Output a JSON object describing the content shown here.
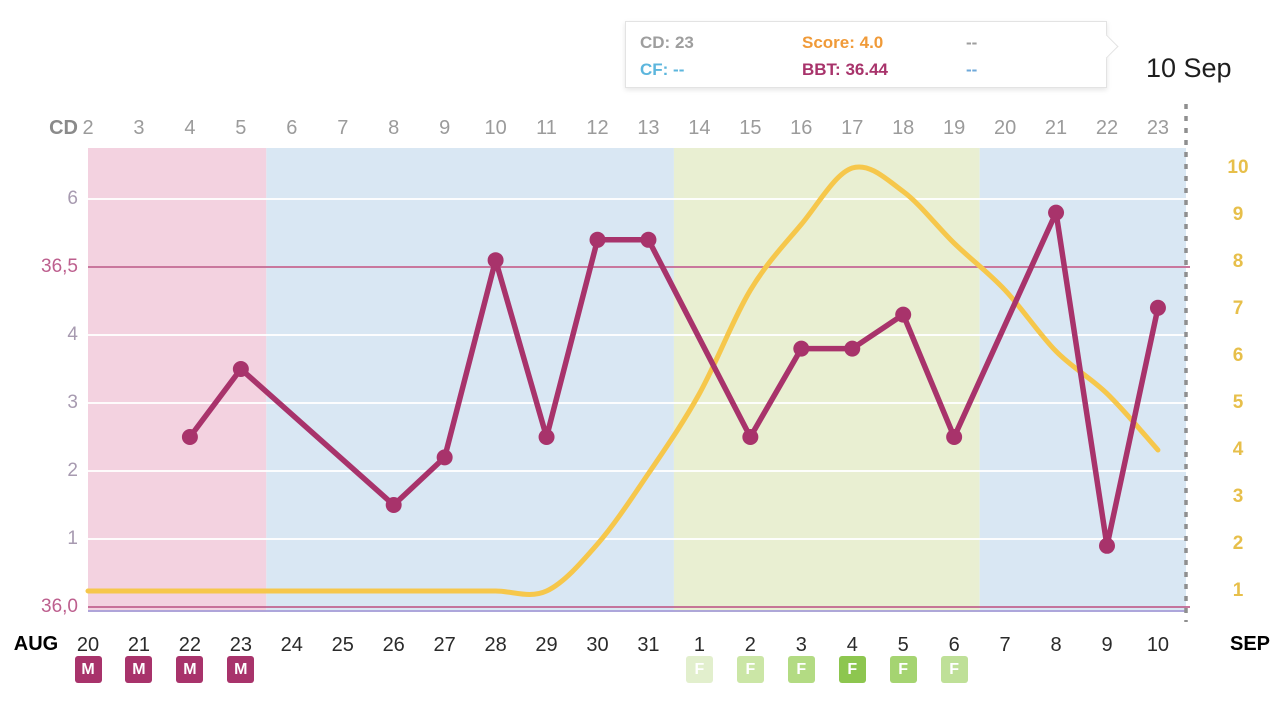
{
  "tooltip": {
    "cd": "CD: 23",
    "score": "Score: 4.0",
    "extra1": "--",
    "cf": "CF: --",
    "bbt": "BBT: 36.44",
    "extra2": "--"
  },
  "current_date_label": "10 Sep",
  "axes": {
    "cd_title": "CD",
    "cd_labels": [
      "2",
      "3",
      "4",
      "5",
      "6",
      "7",
      "8",
      "9",
      "10",
      "11",
      "12",
      "13",
      "14",
      "15",
      "16",
      "17",
      "18",
      "19",
      "20",
      "21",
      "22",
      "23"
    ],
    "left_labels": [
      {
        "text": "6",
        "value": 6,
        "type": "score"
      },
      {
        "text": "36,5",
        "value": 5,
        "type": "temp"
      },
      {
        "text": "4",
        "value": 4,
        "type": "score"
      },
      {
        "text": "3",
        "value": 3,
        "type": "score"
      },
      {
        "text": "2",
        "value": 2,
        "type": "score"
      },
      {
        "text": "1",
        "value": 1,
        "type": "score"
      },
      {
        "text": "36,0",
        "value": 0,
        "type": "temp"
      }
    ],
    "right_labels": [
      "10",
      "9",
      "8",
      "7",
      "6",
      "5",
      "4",
      "3",
      "2",
      "1"
    ],
    "month_start": "AUG",
    "month_end": "SEP",
    "day_labels": [
      "20",
      "21",
      "22",
      "23",
      "24",
      "25",
      "26",
      "27",
      "28",
      "29",
      "30",
      "31",
      "1",
      "2",
      "3",
      "4",
      "5",
      "6",
      "7",
      "8",
      "9",
      "10"
    ]
  },
  "markers": {
    "menstruation": {
      "label": "M",
      "color": "#a8336b",
      "day_indices": [
        0,
        1,
        2,
        3
      ]
    },
    "fertile": {
      "label": "F",
      "day_indices": [
        12,
        13,
        14,
        15,
        16,
        17
      ],
      "colors": [
        "#e2efcd",
        "#cbe6a6",
        "#b3db83",
        "#8dc64f",
        "#a5d471",
        "#bfe098"
      ]
    }
  },
  "chart_data": {
    "type": "line",
    "title": "Cycle chart: BBT and fertility score by cycle day",
    "x": {
      "cycle_days": [
        2,
        3,
        4,
        5,
        6,
        7,
        8,
        9,
        10,
        11,
        12,
        13,
        14,
        15,
        16,
        17,
        18,
        19,
        20,
        21,
        22,
        23
      ],
      "dates": [
        "Aug 20",
        "Aug 21",
        "Aug 22",
        "Aug 23",
        "Aug 24",
        "Aug 25",
        "Aug 26",
        "Aug 27",
        "Aug 28",
        "Aug 29",
        "Aug 30",
        "Aug 31",
        "Sep 1",
        "Sep 2",
        "Sep 3",
        "Sep 4",
        "Sep 5",
        "Sep 6",
        "Sep 7",
        "Sep 8",
        "Sep 9",
        "Sep 10"
      ]
    },
    "series": [
      {
        "name": "BBT",
        "axis": "left",
        "unit": "C",
        "color": "#a8336b",
        "values": [
          null,
          null,
          36.25,
          36.35,
          null,
          null,
          36.15,
          36.22,
          36.51,
          36.25,
          36.54,
          36.54,
          null,
          36.25,
          36.38,
          36.38,
          36.43,
          36.25,
          null,
          36.58,
          36.09,
          36.44
        ]
      },
      {
        "name": "Score",
        "axis": "right",
        "color": "#f6c74b",
        "values": [
          1,
          1,
          1,
          1,
          1,
          1,
          1,
          1,
          1,
          1,
          2,
          3.5,
          5.2,
          7.4,
          8.8,
          10,
          9.5,
          8.4,
          7.4,
          6.1,
          5.2,
          4.0
        ]
      }
    ],
    "left_axis": {
      "temp_min": 36.0,
      "temp_max": 36.7,
      "reference_temps": [
        36.5,
        36.0
      ],
      "reference_line_color": "#bf5f8c"
    },
    "right_axis": {
      "min": 1,
      "max": 10
    },
    "baseline_color": "#a79fd8",
    "grid": true,
    "current_day": {
      "cycle_day": 23,
      "date": "10 Sep"
    },
    "phases": [
      {
        "name": "menstruation",
        "cd_start": 2,
        "cd_end": 5,
        "color": "#f3d2e0"
      },
      {
        "name": "preovulatory",
        "cd_start": 6,
        "cd_end": 13,
        "color": "#d9e7f3"
      },
      {
        "name": "fertile",
        "cd_start": 14,
        "cd_end": 19,
        "color": "#e9efd2"
      },
      {
        "name": "postovulatory",
        "cd_start": 20,
        "cd_end": 23,
        "color": "#d9e7f3"
      }
    ]
  }
}
